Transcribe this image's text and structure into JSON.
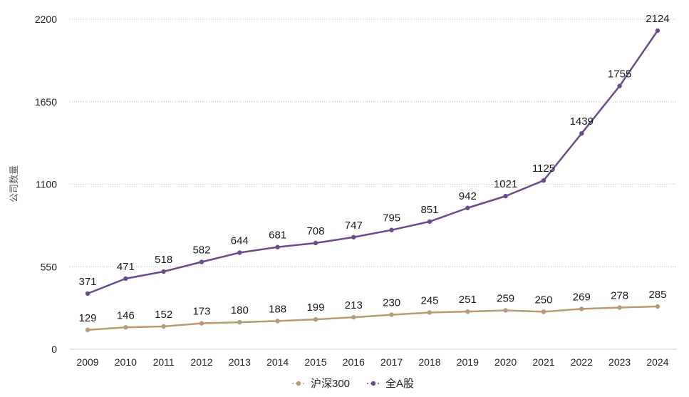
{
  "chart_data": {
    "type": "line",
    "title": "",
    "xlabel": "",
    "ylabel": "公司数量",
    "ylim": [
      0,
      2200
    ],
    "yticks": [
      0,
      550,
      1100,
      1650,
      2200
    ],
    "grid": true,
    "legend_position": "bottom",
    "categories": [
      "2009",
      "2010",
      "2011",
      "2012",
      "2013",
      "2014",
      "2015",
      "2016",
      "2017",
      "2018",
      "2019",
      "2020",
      "2021",
      "2022",
      "2023",
      "2024"
    ],
    "series": [
      {
        "name": "沪深300",
        "color": "#b89a74",
        "values": [
          129,
          146,
          152,
          173,
          180,
          188,
          199,
          213,
          230,
          245,
          251,
          259,
          250,
          269,
          278,
          285
        ]
      },
      {
        "name": "全A股",
        "color": "#6a4c8c",
        "values": [
          371,
          471,
          518,
          582,
          644,
          681,
          708,
          747,
          795,
          851,
          942,
          1021,
          1125,
          1439,
          1755,
          2124
        ]
      }
    ]
  }
}
